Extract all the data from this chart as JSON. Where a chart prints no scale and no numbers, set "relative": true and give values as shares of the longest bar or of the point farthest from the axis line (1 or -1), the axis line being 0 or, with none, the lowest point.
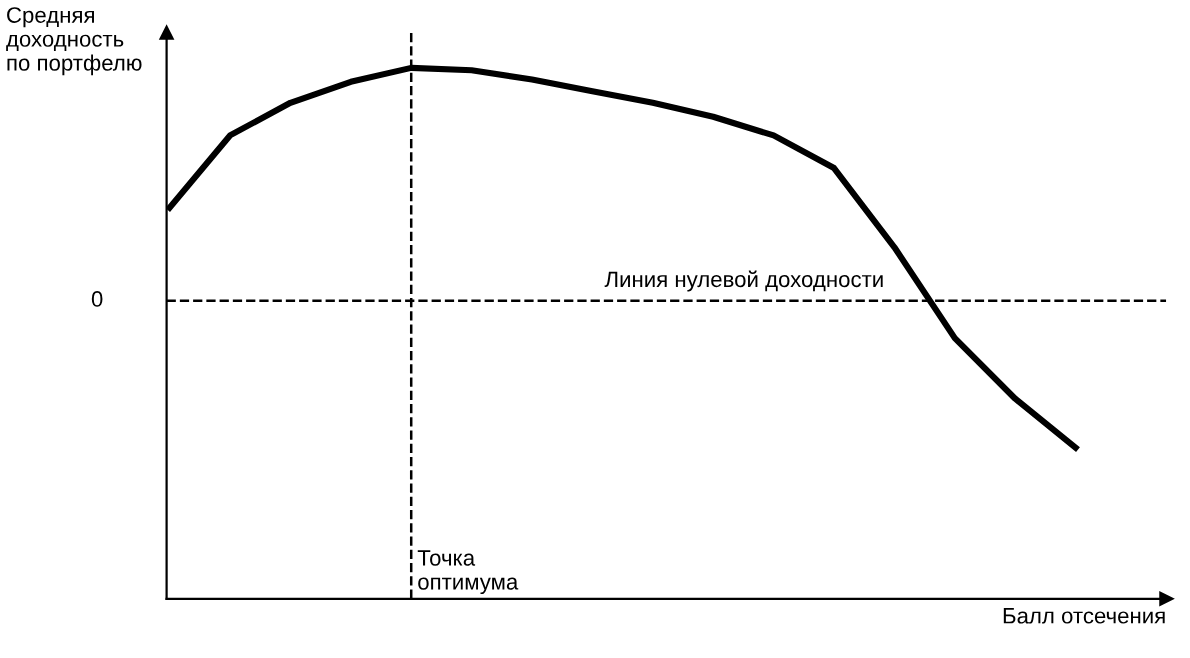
{
  "chart_data": {
    "type": "line",
    "relative": true,
    "ylabel": "Средняя\nдоходность\nпо портфелю",
    "categories": [
      null,
      null,
      null,
      null,
      null,
      null,
      null,
      null,
      null,
      null,
      null,
      null,
      null,
      null,
      null,
      null
    ],
    "series": [
      {
        "color": "#000000",
        "values": [
          0.4,
          0.71,
          0.85,
          0.94,
          1.0,
          0.99,
          0.95,
          0.9,
          0.85,
          0.79,
          0.71,
          0.57,
          0.23,
          -0.16,
          -0.42,
          -0.63
        ]
      }
    ],
    "ref_lines": [
      {
        "axis": "y",
        "value": 0,
        "label": "Линия нулевой доходности",
        "line_style": "dashed",
        "color": "#000000"
      }
    ],
    "annotations": [
      "0",
      "Точка\nоптимума",
      "Балл отсечения"
    ],
    "legend": false,
    "marker": "none",
    "line_style": "solid"
  }
}
